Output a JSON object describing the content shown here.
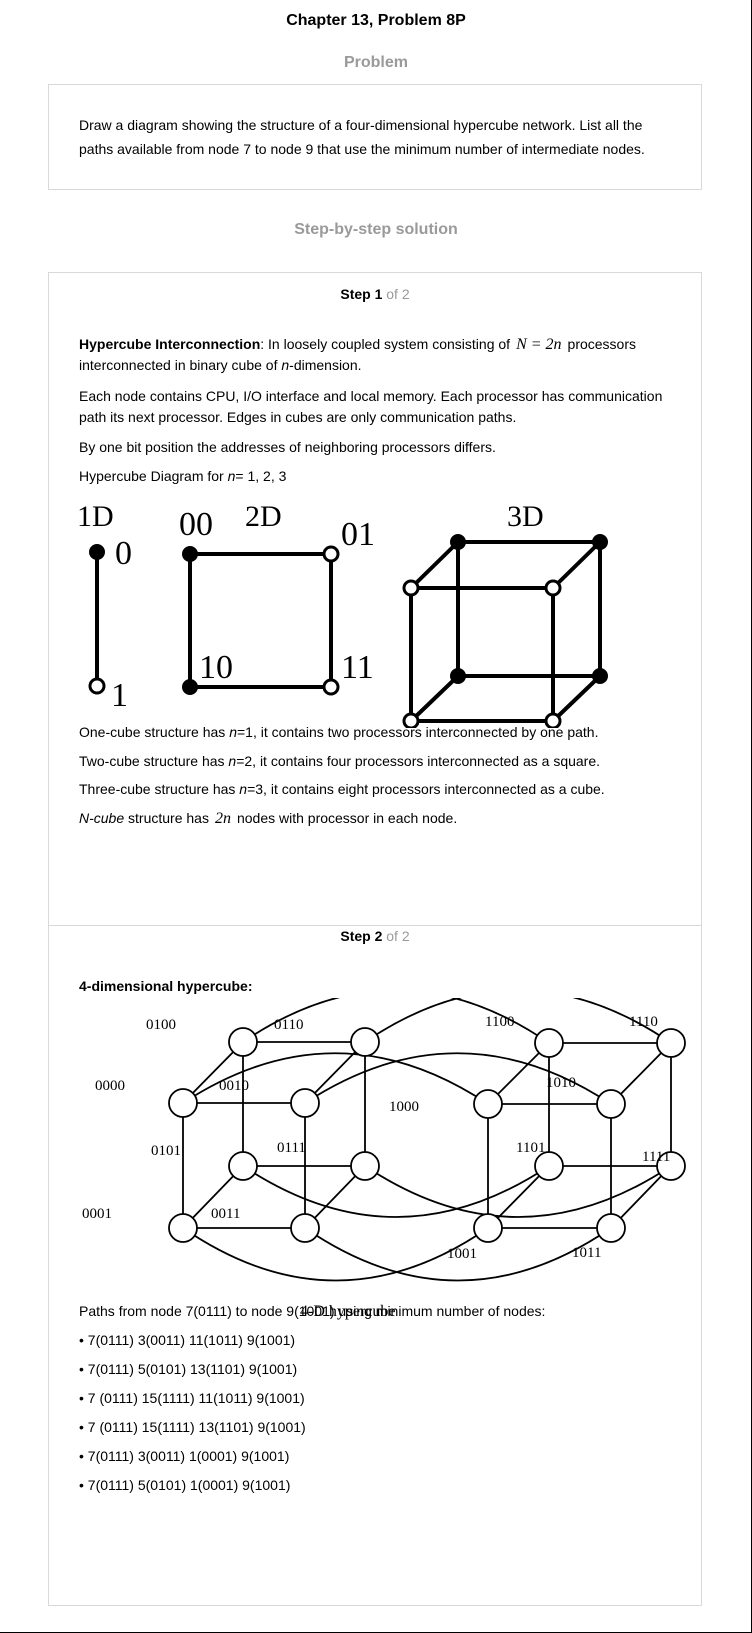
{
  "header": {
    "title": "Chapter 13, Problem 8P"
  },
  "problem": {
    "heading": "Problem",
    "text": "Draw a diagram showing the structure of a four-dimensional hypercube network. List all the paths available from node 7 to node 9 that use the minimum number of intermediate nodes."
  },
  "solution": {
    "heading": "Step-by-step solution"
  },
  "step1": {
    "label": "Step 1",
    "of": "of 2",
    "intro_term": "Hypercube Interconnection",
    "intro_a": ": In loosely coupled system consisting of",
    "intro_formula": "N = 2n",
    "intro_b": "processors",
    "intro_c1": "interconnected in binary cube of ",
    "intro_c_n": "n",
    "intro_c2": "-dimension.",
    "para2": "Each node contains CPU, I/O interface and local memory. Each processor has communication path its next processor. Edges in cubes are only communication paths.",
    "para3": "By one bit position the addresses of neighboring processors differs.",
    "para4_a": "Hypercube Diagram for ",
    "para4_n": "n",
    "para4_b": "= 1, 2, 3",
    "fig": {
      "label_1d": "1D",
      "label_2d": "2D",
      "label_3d": "3D",
      "n1_0": "0",
      "n1_1": "1",
      "n2_00": "00",
      "n2_01": "01",
      "n2_10": "10",
      "n2_11": "11"
    },
    "line_1cube": [
      "One-cube structure has ",
      "n",
      "=1, it contains two processors interconnected by one path."
    ],
    "line_2cube": [
      "Two-cube structure has ",
      "n",
      "=2, it contains four processors interconnected as a square."
    ],
    "line_3cube": [
      "Three-cube structure has ",
      "n",
      "=3, it contains eight processors interconnected as a cube."
    ],
    "line_ncube": [
      "N-cube",
      " structure has",
      "2n",
      "nodes with processor in each node."
    ]
  },
  "step2": {
    "label": "Step 2",
    "of": "of 2",
    "subtitle": "4-dimensional hypercube:",
    "diagram": {
      "caption": "4-D hypercube",
      "nodes": {
        "n0100": "0100",
        "n0110": "0110",
        "n1100": "1100",
        "n1110": "1110",
        "n0000": "0000",
        "n0010": "0010",
        "n1000": "1000",
        "n1010": "1010",
        "n0101": "0101",
        "n0111": "0111",
        "n1101": "1101",
        "n1111": "1111",
        "n0001": "0001",
        "n0011": "0011",
        "n1001": "1001",
        "n1011": "1011"
      }
    },
    "paths_intro": "Paths from node 7(0111) to node 9(1001) using minimum number of nodes:",
    "paths": [
      "• 7(0111) 3(0011) 11(1011) 9(1001)",
      "• 7(0111) 5(0101) 13(1101) 9(1001)",
      "• 7 (0111) 15(1111) 11(1011) 9(1001)",
      "• 7 (0111) 15(1111) 13(1101) 9(1001)",
      "• 7(0111) 3(0011) 1(0001) 9(1001)",
      "• 7(0111) 5(0101) 1(0001) 9(1001)"
    ]
  }
}
